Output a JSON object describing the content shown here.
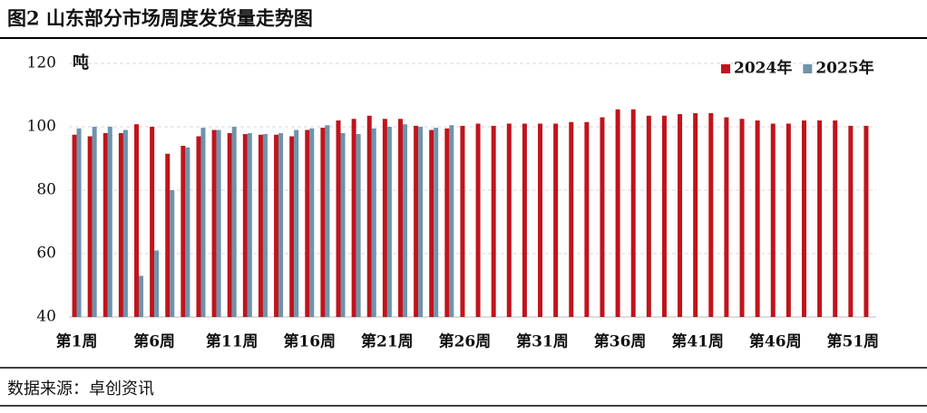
{
  "chart_data": {
    "type": "bar",
    "title": "图2 山东部分市场周度发货量走势图",
    "y_unit": "吨",
    "source": "数据来源：卓创资讯",
    "categories": [
      "第1周",
      null,
      null,
      null,
      null,
      "第6周",
      null,
      null,
      null,
      null,
      "第11周",
      null,
      null,
      null,
      null,
      "第16周",
      null,
      null,
      null,
      null,
      "第21周",
      null,
      null,
      null,
      null,
      "第26周",
      null,
      null,
      null,
      null,
      "第31周",
      null,
      null,
      null,
      null,
      "第36周",
      null,
      null,
      null,
      null,
      "第41周",
      null,
      null,
      null,
      null,
      "第46周",
      null,
      null,
      null,
      null,
      "第51周",
      null
    ],
    "series": [
      {
        "name": "2024年",
        "color": "#c0141c",
        "values": [
          97.5,
          97,
          98,
          98,
          100.8,
          100,
          91.5,
          94,
          97,
          99,
          98,
          97.7,
          97.5,
          97.5,
          97,
          99,
          99.7,
          102,
          102.5,
          103.5,
          102.5,
          102.5,
          100.3,
          99,
          99.5,
          100.3,
          101,
          100.3,
          101,
          101,
          101,
          101,
          101.5,
          101.5,
          103,
          105.5,
          105.5,
          103.5,
          103.5,
          104,
          104.3,
          104.3,
          103,
          102.5,
          102,
          101,
          101,
          102,
          102,
          102,
          100.3,
          100.3
        ]
      },
      {
        "name": "2025年",
        "color": "#6f93ad",
        "values": [
          99.5,
          100,
          100,
          99,
          53,
          61,
          80,
          93.5,
          99.7,
          99,
          100,
          98,
          97.7,
          98,
          99,
          99.5,
          100.5,
          98,
          97.7,
          99.5,
          100,
          100.8,
          100,
          99.7,
          100.5,
          null,
          null,
          null,
          null,
          null,
          null,
          null,
          null,
          null,
          null,
          null,
          null,
          null,
          null,
          null,
          null,
          null,
          null,
          null,
          null,
          null,
          null,
          null,
          null,
          null,
          null,
          null
        ]
      }
    ],
    "ylim": [
      40,
      120
    ],
    "yticks": [
      40,
      60,
      80,
      100,
      120
    ],
    "grid": true,
    "legend": "top-right"
  }
}
